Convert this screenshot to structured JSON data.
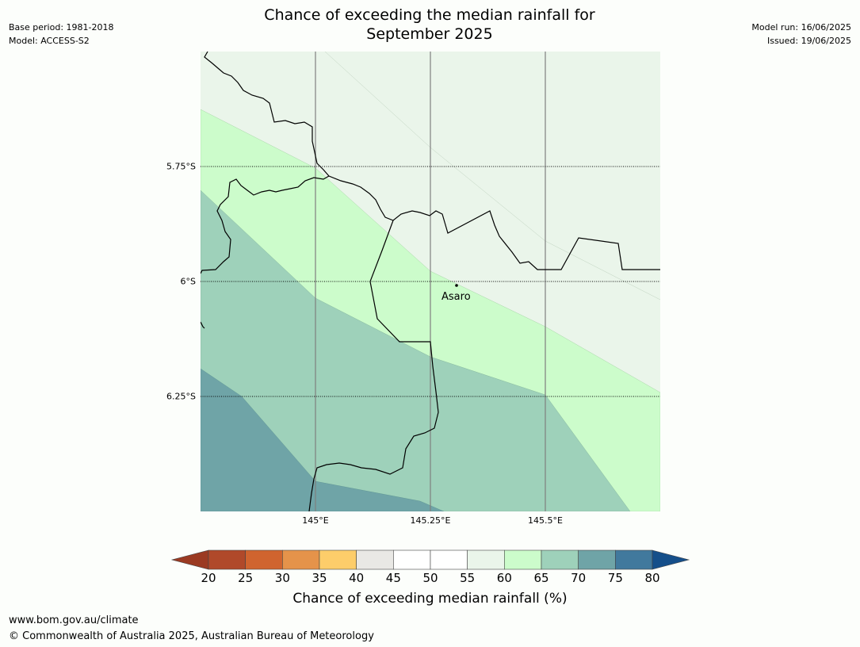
{
  "header": {
    "title_line1": "Chance of exceeding the median rainfall for",
    "title_line2": "September 2025",
    "base_period": "Base period: 1981-2018",
    "model": "Model: ACCESS-S2",
    "model_run": "Model run: 16/06/2025",
    "issued": "Issued: 19/06/2025"
  },
  "map": {
    "lat_labels": [
      "5.75°S",
      "6°S",
      "6.25°S"
    ],
    "lon_labels": [
      "145°E",
      "145.25°E",
      "145.5°E"
    ],
    "place": {
      "name": "Asaro"
    },
    "band_colors": {
      "55_60": "#eaf5ea",
      "60_65": "#ccfccb",
      "65_70": "#9ed1ba",
      "70_75": "#6fa4a7"
    }
  },
  "colorbar": {
    "ticks": [
      "20",
      "25",
      "30",
      "35",
      "40",
      "45",
      "50",
      "55",
      "60",
      "65",
      "70",
      "75",
      "80"
    ],
    "low_extend_color": "#9b3a22",
    "high_extend_color": "#154f8a",
    "colors": [
      "#b0492a",
      "#d0642f",
      "#e5934a",
      "#fdcd6a",
      "#e9e8e5",
      "#ffffff",
      "#ffffff",
      "#eaf5ea",
      "#ccfccb",
      "#9ed1ba",
      "#6fa4a7",
      "#41799d"
    ],
    "label": "Chance of exceeding median rainfall (%)"
  },
  "footer": {
    "url": "www.bom.gov.au/climate",
    "copyright": "© Commonwealth of Australia 2025, Australian Bureau of Meteorology"
  }
}
